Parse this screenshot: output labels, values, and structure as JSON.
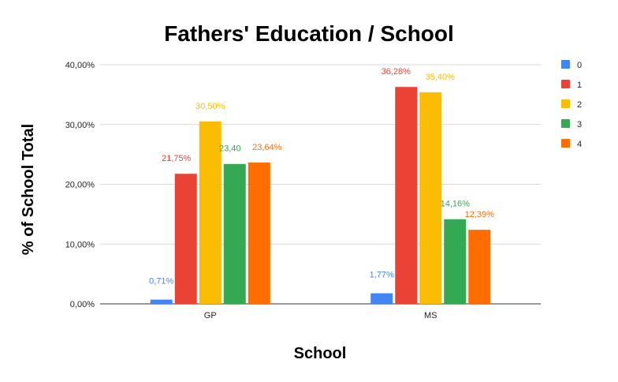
{
  "chart_data": {
    "type": "bar",
    "title": "Fathers' Education / School",
    "xlabel": "School",
    "ylabel": "% of School Total",
    "categories": [
      "GP",
      "MS"
    ],
    "ylim": [
      0,
      40
    ],
    "yticks": [
      0,
      10,
      20,
      30,
      40
    ],
    "ytick_labels": [
      "0,00%",
      "10,00%",
      "20,00%",
      "30,00%",
      "40,00%"
    ],
    "grid": true,
    "legend_position": "right",
    "series": [
      {
        "name": "0",
        "color": "#4285F4",
        "values": [
          0.71,
          1.77
        ],
        "labels": [
          "0,71%",
          "1,77%"
        ]
      },
      {
        "name": "1",
        "color": "#EA4335",
        "values": [
          21.75,
          36.28
        ],
        "labels": [
          "21,75%",
          "36,28%"
        ]
      },
      {
        "name": "2",
        "color": "#FBBC04",
        "values": [
          30.5,
          35.4
        ],
        "labels": [
          "30,50%",
          "35,40%"
        ]
      },
      {
        "name": "3",
        "color": "#34A853",
        "values": [
          23.4,
          14.16
        ],
        "labels": [
          "23,40",
          "14,16%"
        ]
      },
      {
        "name": "4",
        "color": "#FF6D01",
        "values": [
          23.64,
          12.39
        ],
        "labels": [
          "23,64%",
          "12,39%"
        ]
      }
    ]
  }
}
